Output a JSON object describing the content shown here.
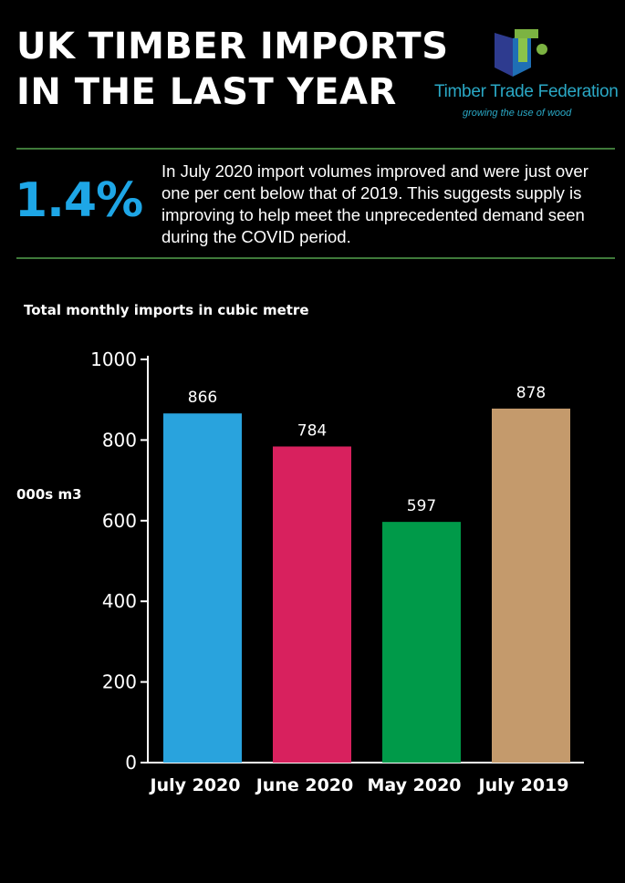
{
  "header": {
    "title_line1": "UK TIMBER IMPORTS",
    "title_line2": "IN THE LAST YEAR"
  },
  "logo": {
    "name": "Timber Trade Federation",
    "tagline": "growing the use of wood",
    "icon": "ttf-logo-icon"
  },
  "highlight": {
    "stat": "1.4%",
    "text": "In July 2020 import volumes improved and were just over one per cent below that of 2019. This suggests supply is improving to help meet the unprecedented demand seen during the COVID period."
  },
  "colors": {
    "background": "#000000",
    "accent": "#1ea6e6",
    "rule": "#3f7a3a",
    "logo_text": "#2aa8c5"
  },
  "chart_data": {
    "type": "bar",
    "title": "Total monthly imports in cubic metre",
    "ylabel": "000s m3",
    "xlabel": "",
    "categories": [
      "July 2020",
      "June 2020",
      "May 2020",
      "July 2019"
    ],
    "values": [
      866,
      784,
      597,
      878
    ],
    "data_labels": [
      "866",
      "784",
      "597",
      "878"
    ],
    "bar_colors": [
      "#29a3dd",
      "#d8215e",
      "#009a49",
      "#c49a6c"
    ],
    "ylim": [
      0,
      1000
    ],
    "yticks": [
      0,
      200,
      400,
      600,
      800,
      1000
    ],
    "grid": false,
    "legend": "none"
  }
}
